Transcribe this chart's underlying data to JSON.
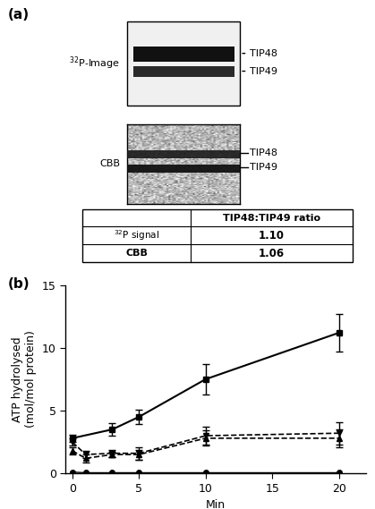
{
  "panel_a_label": "(a)",
  "panel_b_label": "(b)",
  "p32_label": "$^{32}$P-Image",
  "cbb_label": "CBB",
  "tip48_label": "TIP48",
  "tip49_label": "TIP49",
  "table_header": "TIP48:TIP49 ratio",
  "table_row1_label": "$^{32}$P signal",
  "table_row1_val": "1.10",
  "table_row2_label": "CBB",
  "table_row2_val": "1.06",
  "xlabel": "Min",
  "ylabel": "ATP hydrolysed\n(mol/mol protein)",
  "xlim": [
    -0.5,
    22
  ],
  "ylim": [
    0,
    15
  ],
  "xticks": [
    0,
    5,
    10,
    15,
    20
  ],
  "yticks": [
    0,
    5,
    10,
    15
  ],
  "series1_x": [
    0,
    3,
    5,
    10,
    20
  ],
  "series1_y": [
    2.8,
    3.5,
    4.5,
    7.5,
    11.2
  ],
  "series1_yerr": [
    0.3,
    0.5,
    0.6,
    1.2,
    1.5
  ],
  "series2_x": [
    0,
    1,
    3,
    5,
    10,
    20
  ],
  "series2_y": [
    2.5,
    1.5,
    1.6,
    1.6,
    3.0,
    3.2
  ],
  "series2_yerr": [
    0.3,
    0.3,
    0.3,
    0.5,
    0.7,
    0.9
  ],
  "series3_x": [
    0,
    1,
    3,
    5,
    10,
    20
  ],
  "series3_y": [
    1.8,
    1.2,
    1.5,
    1.5,
    2.8,
    2.8
  ],
  "series3_yerr": [
    0.3,
    0.3,
    0.2,
    0.4,
    0.6,
    0.7
  ],
  "series4_x": [
    0,
    1,
    3,
    5,
    10,
    20
  ],
  "series4_y": [
    0.1,
    0.05,
    0.05,
    0.05,
    0.05,
    0.05
  ],
  "series4_yerr": [
    0.05,
    0.02,
    0.02,
    0.02,
    0.02,
    0.02
  ],
  "background_color": "#ffffff",
  "fontsize_labels": 9,
  "fontsize_ticks": 9
}
